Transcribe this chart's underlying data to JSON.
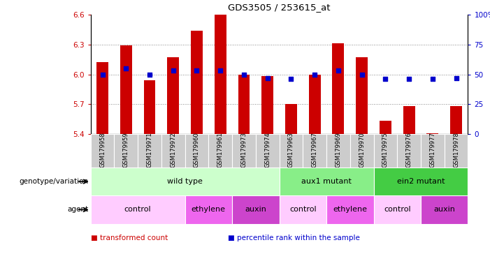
{
  "title": "GDS3505 / 253615_at",
  "samples": [
    "GSM179958",
    "GSM179959",
    "GSM179971",
    "GSM179972",
    "GSM179960",
    "GSM179961",
    "GSM179973",
    "GSM179974",
    "GSM179963",
    "GSM179967",
    "GSM179969",
    "GSM179970",
    "GSM179975",
    "GSM179976",
    "GSM179977",
    "GSM179978"
  ],
  "bar_values": [
    6.12,
    6.29,
    5.94,
    6.17,
    6.44,
    6.6,
    6.0,
    5.98,
    5.7,
    6.0,
    6.31,
    6.17,
    5.53,
    5.68,
    5.41,
    5.68
  ],
  "percentile_values": [
    50,
    55,
    50,
    53,
    53,
    53,
    50,
    47,
    46,
    50,
    53,
    50,
    46,
    46,
    46,
    47
  ],
  "ylim_left": [
    5.4,
    6.6
  ],
  "ylim_right": [
    0,
    100
  ],
  "yticks_left": [
    5.4,
    5.7,
    6.0,
    6.3,
    6.6
  ],
  "yticks_right": [
    0,
    25,
    50,
    75,
    100
  ],
  "ytick_labels_right": [
    "0",
    "25",
    "50",
    "75",
    "100%"
  ],
  "bar_color": "#cc0000",
  "dot_color": "#0000cc",
  "bar_bottom": 5.4,
  "genotype_groups": [
    {
      "label": "wild type",
      "start": 0,
      "end": 8,
      "color": "#ccffcc"
    },
    {
      "label": "aux1 mutant",
      "start": 8,
      "end": 12,
      "color": "#88ee88"
    },
    {
      "label": "ein2 mutant",
      "start": 12,
      "end": 16,
      "color": "#44cc44"
    }
  ],
  "agent_groups": [
    {
      "label": "control",
      "start": 0,
      "end": 4,
      "color": "#ffccff"
    },
    {
      "label": "ethylene",
      "start": 4,
      "end": 6,
      "color": "#ee66ee"
    },
    {
      "label": "auxin",
      "start": 6,
      "end": 8,
      "color": "#cc44cc"
    },
    {
      "label": "control",
      "start": 8,
      "end": 10,
      "color": "#ffccff"
    },
    {
      "label": "ethylene",
      "start": 10,
      "end": 12,
      "color": "#ee66ee"
    },
    {
      "label": "control",
      "start": 12,
      "end": 14,
      "color": "#ffccff"
    },
    {
      "label": "auxin",
      "start": 14,
      "end": 16,
      "color": "#cc44cc"
    }
  ],
  "legend_items": [
    {
      "label": "transformed count",
      "color": "#cc0000"
    },
    {
      "label": "percentile rank within the sample",
      "color": "#0000cc"
    }
  ],
  "xlabel_genotype": "genotype/variation",
  "xlabel_agent": "agent",
  "sample_row_color": "#cccccc",
  "dotted_line_color": "#888888"
}
